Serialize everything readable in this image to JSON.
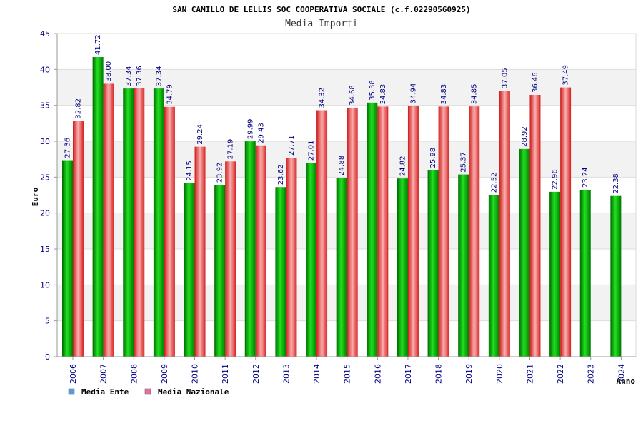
{
  "chart_data": {
    "type": "bar",
    "title": "SAN CAMILLO DE LELLIS SOC COOPERATIVA SOCIALE (c.f.02290560925)",
    "subtitle": "Media Importi",
    "xlabel": "Anno",
    "ylabel": "Euro",
    "ylim": [
      0,
      45
    ],
    "yticks": [
      0,
      5,
      10,
      15,
      20,
      25,
      30,
      35,
      40,
      45
    ],
    "grid": true,
    "legend_position": "bottom-left",
    "categories": [
      "2006",
      "2007",
      "2008",
      "2009",
      "2010",
      "2011",
      "2012",
      "2013",
      "2014",
      "2015",
      "2016",
      "2017",
      "2018",
      "2019",
      "2020",
      "2021",
      "2022",
      "2023",
      "2024"
    ],
    "series": [
      {
        "name": "Media Ente",
        "color": "#00b000",
        "legend_color": "#5b9bd5",
        "values": [
          27.36,
          41.72,
          37.34,
          37.34,
          24.15,
          23.92,
          29.99,
          23.62,
          27.01,
          24.88,
          35.38,
          24.82,
          25.98,
          25.37,
          22.52,
          28.92,
          22.96,
          23.24,
          22.38
        ],
        "labels": [
          "27.36",
          "41.72",
          "37.34",
          "37.34",
          "24.15",
          "23.92",
          "29.99",
          "23.62",
          "27.01",
          "24.88",
          "35.38",
          "24.82",
          "25.98",
          "25.37",
          "22.52",
          "28.92",
          "22.96",
          "23.24",
          "22.38"
        ]
      },
      {
        "name": "Media Nazionale",
        "color": "#e83030",
        "legend_color": "#e070a0",
        "values": [
          32.82,
          38.0,
          37.36,
          34.79,
          29.24,
          27.19,
          29.43,
          27.71,
          34.32,
          34.68,
          34.83,
          34.94,
          34.83,
          34.85,
          37.05,
          36.46,
          37.49,
          null,
          null
        ],
        "labels": [
          "32.82",
          "38.00",
          "37.36",
          "34.79",
          "29.24",
          "27.19",
          "29.43",
          "27.71",
          "34.32",
          "34.68",
          "34.83",
          "34.94",
          "34.83",
          "34.85",
          "37.05",
          "36.46",
          "37.49",
          "",
          ""
        ]
      }
    ]
  }
}
